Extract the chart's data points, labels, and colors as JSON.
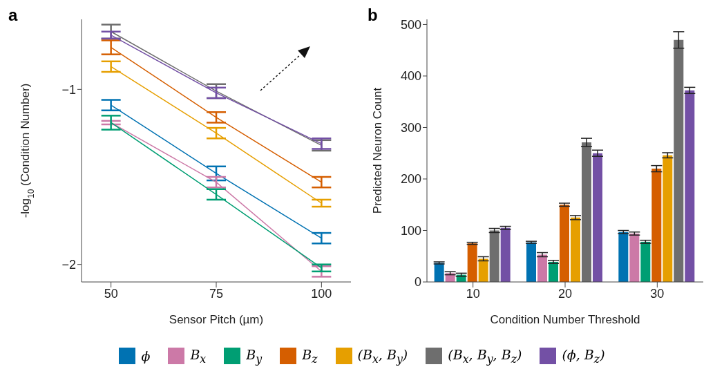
{
  "chart_data": [
    {
      "type": "line",
      "title": "a",
      "xlabel": "Sensor Pitch (µm)",
      "ylabel": "-log$_{10}$ (Condition Number)",
      "x": [
        50,
        75,
        100
      ],
      "xlim": [
        43,
        107
      ],
      "xticks": [
        50,
        75,
        100
      ],
      "ylim": [
        -2.1,
        -0.6
      ],
      "yticks": [
        -1,
        -2
      ],
      "legend": "bottom",
      "marker": "none",
      "line_style": "solid",
      "series": [
        {
          "name": "ϕ",
          "color": "#0072b2",
          "values": [
            -1.09,
            -1.48,
            -1.85
          ],
          "errors": [
            0.03,
            0.04,
            0.03
          ]
        },
        {
          "name": "B$_{x}$",
          "color": "#cc79a7",
          "values": [
            -1.19,
            -1.53,
            -2.04
          ],
          "errors": [
            0.01,
            0.03,
            0.03
          ]
        },
        {
          "name": "B$_{y}$",
          "color": "#009e73",
          "values": [
            -1.19,
            -1.6,
            -2.02
          ],
          "errors": [
            0.04,
            0.03,
            0.02
          ]
        },
        {
          "name": "B$_{z}$",
          "color": "#d55e00",
          "values": [
            -0.76,
            -1.16,
            -1.53
          ],
          "errors": [
            0.04,
            0.03,
            0.03
          ]
        },
        {
          "name": "(B$_{x}$, B$_{y}$)",
          "color": "#e69f00",
          "values": [
            -0.87,
            -1.25,
            -1.65
          ],
          "errors": [
            0.03,
            0.03,
            0.02
          ]
        },
        {
          "name": "(B$_{x}$, B$_{y}$, B$_{z}$)",
          "color": "#6e6e6e",
          "values": [
            -0.67,
            -1.01,
            -1.32
          ],
          "errors": [
            0.04,
            0.04,
            0.03
          ]
        },
        {
          "name": "(ϕ, B$_{z}$)",
          "color": "#7350a5",
          "values": [
            -0.69,
            -1.02,
            -1.31
          ],
          "errors": [
            0.02,
            0.03,
            0.03
          ]
        }
      ]
    },
    {
      "type": "bar",
      "title": "b",
      "xlabel": "Condition Number Threshold",
      "ylabel": "Predicted Neuron Count",
      "categories": [
        "10",
        "20",
        "30"
      ],
      "ylim": [
        0,
        510
      ],
      "yticks": [
        0,
        100,
        200,
        300,
        400,
        500
      ],
      "legend": "bottom",
      "series": [
        {
          "color": "#0072b2",
          "values": [
            37,
            77,
            97
          ],
          "errors": [
            2,
            2,
            3
          ]
        },
        {
          "color": "#cc79a7",
          "values": [
            17,
            53,
            94
          ],
          "errors": [
            3,
            4,
            3
          ]
        },
        {
          "color": "#009e73",
          "values": [
            14,
            39,
            78
          ],
          "errors": [
            3,
            3,
            3
          ]
        },
        {
          "color": "#d55e00",
          "values": [
            75,
            150,
            220
          ],
          "errors": [
            2,
            3,
            6
          ]
        },
        {
          "color": "#e69f00",
          "values": [
            45,
            125,
            246
          ],
          "errors": [
            4,
            4,
            5
          ]
        },
        {
          "color": "#6e6e6e",
          "values": [
            100,
            271,
            470
          ],
          "errors": [
            4,
            8,
            16
          ]
        },
        {
          "color": "#7350a5",
          "values": [
            105,
            250,
            372
          ],
          "errors": [
            3,
            6,
            6
          ]
        }
      ]
    }
  ]
}
